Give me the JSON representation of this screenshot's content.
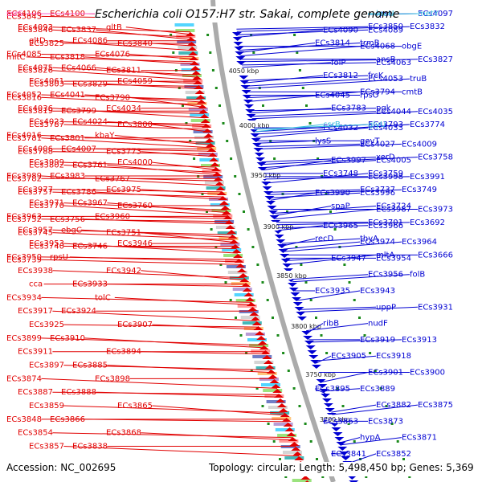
{
  "title": "Escherichia coli O157:H7 str. Sakai, complete genome",
  "accession_label": "Accession: NC_002695",
  "topology_label": "Topology: circular; Length: 5,498,450 bp; Genes: 5,369",
  "colors": {
    "left_strand": "#e10000",
    "right_strand": "#0000d2",
    "rna_gene": "#ff66cc",
    "trna_gene": "#33bbdd",
    "axis": "#888888"
  },
  "scale_ticks": [
    "4050 kbp",
    "4000 kbp",
    "3950 kbp",
    "3900 kbp",
    "3850 kbp",
    "3800 kbp",
    "3750 kbp",
    "3700 kbp"
  ],
  "left_genes": [
    "ECs4106",
    "ECs4100",
    "ECs4093",
    "gltB",
    "gltD",
    "ECs4086",
    "ECs4085",
    "ECs4076",
    "ECs4075",
    "ECs4066",
    "ECs4061",
    "ECs4059",
    "ECs4052",
    "ECs4041",
    "ECs4036",
    "ECs4034",
    "ECs4023",
    "ECs4024",
    "ECs4016",
    "kbaY",
    "ECs4006",
    "ECs4007",
    "ECs3999",
    "ECs4000",
    "ECs3989",
    "ECs3983",
    "ECs3977",
    "ECs3975",
    "ECs3971",
    "ECs3967",
    "ECs3963",
    "ECs3960",
    "ECs3957",
    "ebgC",
    "ECs3953",
    "ECs3946",
    "ECs3950",
    "rpsU",
    "ECs3938",
    "ECs3942",
    "cca",
    "ECs3933",
    "ECs3934",
    "tolC",
    "ECs3917",
    "ECs3924",
    "ECs3925",
    "ECs3907",
    "ECs3899",
    "ECs3910",
    "ECs3911",
    "ECs3894",
    "ECs3897",
    "ECs3885",
    "ECs3874",
    "ECs3898",
    "ECs3887",
    "ECs3888",
    "ECs3859",
    "ECs3865",
    "ECs3848",
    "ECs3866",
    "ECs3854",
    "ECs3868",
    "ECs3857",
    "ECs3838",
    "ECs3843",
    "ECs3855",
    "ECs3846",
    "ECs3837",
    "ECs3825",
    "ECs3840",
    "mltC",
    "ECs3818",
    "ECs3826",
    "ECs3811",
    "ECs3803",
    "ECs3829",
    "ECs3816",
    "ECs3790",
    "ECs3819",
    "ECs3799",
    "ECs3787",
    "ECs3800",
    "ECs3781",
    "ECs3801",
    "ECs3788",
    "ECs3773",
    "ECs3802",
    "ECs3761",
    "ECs3782",
    "ECs3767",
    "ECs3757",
    "ECs3786",
    "ECs3770",
    "ECs3760",
    "ECs3752",
    "ECs3756",
    "ECs3745",
    "ECs3751",
    "ECs3740",
    "ECs3746",
    "ECs3739"
  ],
  "left_rna_genes": [
    "ssrS"
  ],
  "right_genes": [
    "rpsI",
    "ECs4097",
    "ECs4089",
    "ECs4090",
    "ECs4068",
    "obgE",
    "ECs4063",
    "folP",
    "ECs4053",
    "truB",
    "rpsO",
    "ECs4045",
    "ECs4044",
    "ECs4035",
    "ECs4033",
    "ECs4032",
    "ECs4027",
    "ECs4009",
    "ECs4005",
    "ECs3997",
    "ECs3998",
    "ECs3991",
    "ECs3996",
    "ECs3990",
    "ECs3987",
    "ECs3973",
    "ECs3966",
    "ECs3965",
    "ECs3974",
    "ECs3964",
    "ECs3954",
    "ECs3947",
    "ECs3956",
    "folB",
    "ECs3943",
    "ECs3935",
    "uppP",
    "ECs3931",
    "nudF",
    "ribB",
    "ECs3919",
    "ECs3913",
    "ECs3918",
    "ECs3905",
    "ECs3901",
    "ECs3900",
    "ECs3889",
    "ECs3895",
    "ECs3882",
    "ECs3875",
    "ECs3873",
    "ECs3863",
    "hypA",
    "ECs3871",
    "ECs3852",
    "ECs3841",
    "ECs3850",
    "ECs3832",
    "trmB",
    "ECs3814",
    "ansB",
    "ECs3827",
    "frcK",
    "ECs3812",
    "ECs3794",
    "cmtB",
    "pgk",
    "ECs3783",
    "ECs3793",
    "ECs3774",
    "gevT",
    "lysS",
    "xerD",
    "ECs3758",
    "ECs3759",
    "ECs3748",
    "ECs3737",
    "ECs3749",
    "ECs3724",
    "spaP",
    "ECs3701",
    "ECs3692",
    "thyA",
    "recD",
    "mltA",
    "ECs3666"
  ],
  "right_trna_genes": [
    "leuU",
    "metY",
    "glyU",
    "csrB"
  ]
}
